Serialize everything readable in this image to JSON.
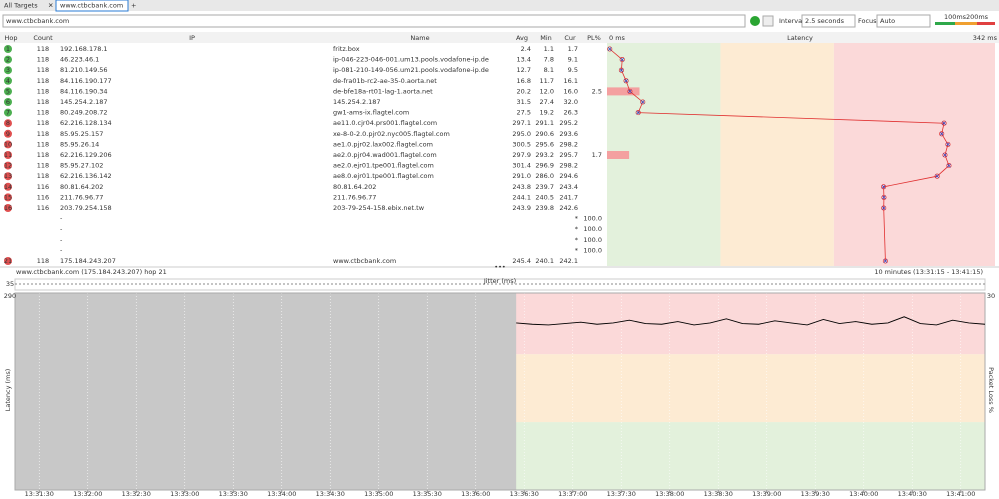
{
  "tabs": [
    "All Targets",
    "www.ctbcbank.com"
  ],
  "toolbar": {
    "address": "www.ctbcbank.com",
    "interval_label": "Interval",
    "interval": "2.5 seconds",
    "focus_label": "Focus",
    "focus": "Auto",
    "scale": [
      {
        "value": 100,
        "label": "100ms"
      },
      {
        "value": 200,
        "label": "200ms"
      }
    ]
  },
  "table": {
    "headers": [
      "Hop",
      "Count",
      "IP",
      "Name",
      "Avg",
      "Min",
      "Cur",
      "PL%",
      "Latency"
    ],
    "latency_min": {
      "value": 0,
      "label": "0 ms"
    },
    "latency_max": {
      "value": 342,
      "label": "342 ms"
    },
    "rows": [
      {
        "hop": "1",
        "count": "118",
        "ip": "192.168.178.1",
        "name": "fritz.box",
        "avg": "2.4",
        "min": "1.1",
        "cur": "1.7",
        "pl": null
      },
      {
        "hop": "2",
        "count": "118",
        "ip": "46.223.46.1",
        "name": "ip-046-223-046-001.um13.pools.vodafone-ip.de",
        "avg": "13.4",
        "min": "7.8",
        "cur": "9.1",
        "pl": null
      },
      {
        "hop": "3",
        "count": "118",
        "ip": "81.210.149.56",
        "name": "ip-081-210-149-056.um21.pools.vodafone-ip.de",
        "avg": "12.7",
        "min": "8.1",
        "cur": "9.5",
        "pl": null
      },
      {
        "hop": "4",
        "count": "118",
        "ip": "84.116.190.177",
        "name": "de-fra01b-rc2-ae-35-0.aorta.net",
        "avg": "16.8",
        "min": "11.7",
        "cur": "16.1",
        "pl": null
      },
      {
        "hop": "5",
        "count": "118",
        "ip": "84.116.190.34",
        "name": "de-bfe18a-rt01-lag-1.aorta.net",
        "avg": "20.2",
        "min": "12.0",
        "cur": "16.0",
        "pl": "2.5"
      },
      {
        "hop": "6",
        "count": "118",
        "ip": "145.254.2.187",
        "name": "145.254.2.187",
        "avg": "31.5",
        "min": "27.4",
        "cur": "32.0",
        "pl": null
      },
      {
        "hop": "7",
        "count": "118",
        "ip": "80.249.208.72",
        "name": "gw1-ams-ix.flagtel.com",
        "avg": "27.5",
        "min": "19.2",
        "cur": "26.3",
        "pl": null
      },
      {
        "hop": "8",
        "count": "118",
        "ip": "62.216.128.134",
        "name": "ae11.0.cjr04.prs001.flagtel.com",
        "avg": "297.1",
        "min": "291.1",
        "cur": "295.2",
        "pl": null
      },
      {
        "hop": "9",
        "count": "118",
        "ip": "85.95.25.157",
        "name": "xe-8-0-2.0.pjr02.nyc005.flagtel.com",
        "avg": "295.0",
        "min": "290.6",
        "cur": "293.6",
        "pl": null
      },
      {
        "hop": "10",
        "count": "118",
        "ip": "85.95.26.14",
        "name": "ae1.0.pjr02.lax002.flagtel.com",
        "avg": "300.5",
        "min": "295.6",
        "cur": "298.2",
        "pl": null
      },
      {
        "hop": "11",
        "count": "118",
        "ip": "62.216.129.206",
        "name": "ae2.0.pjr04.wad001.flagtel.com",
        "avg": "297.9",
        "min": "293.2",
        "cur": "295.7",
        "pl": "1.7"
      },
      {
        "hop": "12",
        "count": "118",
        "ip": "85.95.27.102",
        "name": "ae2.0.ejr01.tpe001.flagtel.com",
        "avg": "301.4",
        "min": "296.9",
        "cur": "298.2",
        "pl": null
      },
      {
        "hop": "13",
        "count": "118",
        "ip": "62.216.136.142",
        "name": "ae8.0.ejr01.tpe001.flagtel.com",
        "avg": "291.0",
        "min": "286.0",
        "cur": "294.6",
        "pl": null
      },
      {
        "hop": "14",
        "count": "116",
        "ip": "80.81.64.202",
        "name": "80.81.64.202",
        "avg": "243.8",
        "min": "239.7",
        "cur": "243.4",
        "pl": null
      },
      {
        "hop": "15",
        "count": "116",
        "ip": "211.76.96.77",
        "name": "211.76.96.77",
        "avg": "244.1",
        "min": "240.5",
        "cur": "241.7",
        "pl": null
      },
      {
        "hop": "16",
        "count": "116",
        "ip": "203.79.254.158",
        "name": "203-79-254-158.ebix.net.tw",
        "avg": "243.9",
        "min": "239.8",
        "cur": "242.6",
        "pl": null
      },
      {
        "hop": null,
        "count": null,
        "ip": "-",
        "name": null,
        "avg": null,
        "min": null,
        "cur": "*",
        "pl": "100.0"
      },
      {
        "hop": null,
        "count": null,
        "ip": "-",
        "name": null,
        "avg": null,
        "min": null,
        "cur": "*",
        "pl": "100.0"
      },
      {
        "hop": null,
        "count": null,
        "ip": "-",
        "name": null,
        "avg": null,
        "min": null,
        "cur": "*",
        "pl": "100.0"
      },
      {
        "hop": null,
        "count": null,
        "ip": "-",
        "name": null,
        "avg": null,
        "min": null,
        "cur": "*",
        "pl": "100.0"
      },
      {
        "hop": "21",
        "count": "118",
        "ip": "175.184.243.207",
        "name": "www.ctbcbank.com",
        "avg": "245.4",
        "min": "240.1",
        "cur": "242.1",
        "pl": null
      }
    ]
  },
  "chart_data": {
    "type": "line",
    "title": "www.ctbcbank.com (175.184.243.207) hop 21",
    "subtitle": "10 minutes (13:31:15 - 13:41:15)",
    "jitter_label": "Jitter (ms)",
    "jitter_ticks": [
      35
    ],
    "y_label": "Latency (ms)",
    "y2_label": "Packet Loss %",
    "xlim": [
      "13:31:15",
      "13:41:15"
    ],
    "ylim": [
      0,
      290
    ],
    "yticks": [
      290
    ],
    "y2lim": [
      0,
      30
    ],
    "y2ticks": [
      30
    ],
    "xticks": [
      "13:31:30",
      "13:32:00",
      "13:32:30",
      "13:33:00",
      "13:33:30",
      "13:34:00",
      "13:34:30",
      "13:35:00",
      "13:35:30",
      "13:36:00",
      "13:36:30",
      "13:37:00",
      "13:37:30",
      "13:38:00",
      "13:38:30",
      "13:39:00",
      "13:39:30",
      "13:40:00",
      "13:40:30",
      "13:41:00"
    ],
    "x": [
      "13:36:25",
      "13:36:35",
      "13:36:45",
      "13:36:55",
      "13:37:05",
      "13:37:15",
      "13:37:25",
      "13:37:35",
      "13:37:45",
      "13:37:55",
      "13:38:05",
      "13:38:15",
      "13:38:25",
      "13:38:35",
      "13:38:45",
      "13:38:55",
      "13:39:05",
      "13:39:15",
      "13:39:25",
      "13:39:35",
      "13:39:45",
      "13:39:55",
      "13:40:05",
      "13:40:15",
      "13:40:25",
      "13:40:35",
      "13:40:45",
      "13:40:55",
      "13:41:05",
      "13:41:15"
    ],
    "series": [
      {
        "name": "Latency",
        "color": "#000000",
        "values": [
          246,
          244,
          243,
          245,
          247,
          244,
          246,
          250,
          245,
          244,
          248,
          243,
          246,
          252,
          245,
          244,
          249,
          246,
          243,
          251,
          245,
          248,
          244,
          246,
          255,
          245,
          243,
          250,
          246,
          244
        ]
      }
    ]
  }
}
